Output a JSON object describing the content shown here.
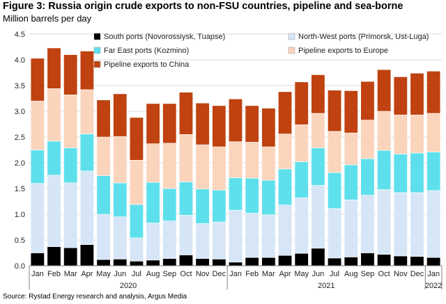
{
  "title": "Figure 3: Russia origin crude exports to non-FSU countries, pipeline and sea-borne",
  "subtitle": "Million barrels per day",
  "source": "Source: Rystad Energy research and analysis, Argus Media",
  "chart_data": {
    "type": "bar",
    "stacked": true,
    "ylim": [
      0,
      4.5
    ],
    "yticks": [
      "0.0",
      "0.5",
      "1.0",
      "1.5",
      "2.0",
      "2.5",
      "3.0",
      "3.5",
      "4.0",
      "4.5"
    ],
    "categories": [
      "Jan",
      "Feb",
      "Mar",
      "Apr",
      "May",
      "Jun",
      "Jul",
      "Aug",
      "Sep",
      "Oct",
      "Nov",
      "Dec",
      "Jan",
      "Feb",
      "Mar",
      "Apr",
      "May",
      "Jun",
      "Jul",
      "Aug",
      "Sep",
      "Oct",
      "Nov",
      "Dec",
      "Jan"
    ],
    "year_labels": [
      {
        "label": "2020",
        "start": 0,
        "end": 11
      },
      {
        "label": "2021",
        "start": 12,
        "end": 23
      },
      {
        "label": "2022",
        "start": 24,
        "end": 24
      }
    ],
    "grid": true,
    "legend_position": "top",
    "series": [
      {
        "name": "South ports (Novorossiysk, Tuapse)",
        "color": "#000000",
        "values": [
          0.25,
          0.37,
          0.35,
          0.41,
          0.12,
          0.13,
          0.09,
          0.11,
          0.14,
          0.21,
          0.14,
          0.13,
          0.07,
          0.16,
          0.16,
          0.2,
          0.24,
          0.34,
          0.15,
          0.17,
          0.25,
          0.22,
          0.19,
          0.18,
          0.16
        ]
      },
      {
        "name": "North-West ports (Primorsk, Ust-Luga)",
        "color": "#d6e6f7",
        "values": [
          1.35,
          1.39,
          1.26,
          1.43,
          0.88,
          0.82,
          0.45,
          0.72,
          0.73,
          0.77,
          0.68,
          0.72,
          1.01,
          0.86,
          0.83,
          0.98,
          1.08,
          1.22,
          0.96,
          1.11,
          1.12,
          1.26,
          1.23,
          1.24,
          1.3
        ]
      },
      {
        "name": "Far East ports (Kozmino)",
        "color": "#5ee0ec",
        "values": [
          0.65,
          0.66,
          0.68,
          0.72,
          0.75,
          0.66,
          0.65,
          0.79,
          0.63,
          0.65,
          0.67,
          0.62,
          0.63,
          0.68,
          0.67,
          0.7,
          0.7,
          0.73,
          0.7,
          0.68,
          0.71,
          0.76,
          0.75,
          0.77,
          0.75
        ]
      },
      {
        "name": "Pipeline exports to Europe",
        "color": "#fbd4bc",
        "values": [
          0.95,
          1.02,
          1.03,
          0.86,
          0.75,
          0.9,
          0.86,
          0.75,
          0.88,
          0.92,
          0.86,
          0.84,
          0.7,
          0.7,
          0.65,
          0.68,
          0.72,
          0.67,
          0.8,
          0.62,
          0.75,
          0.76,
          0.76,
          0.74,
          0.75
        ]
      },
      {
        "name": "Pipeline exports to China",
        "color": "#bf4210",
        "values": [
          0.83,
          0.79,
          0.78,
          0.75,
          0.72,
          0.83,
          0.83,
          0.78,
          0.77,
          0.82,
          0.81,
          0.8,
          0.83,
          0.71,
          0.75,
          0.82,
          0.83,
          0.75,
          0.8,
          0.82,
          0.75,
          0.81,
          0.74,
          0.81,
          0.82
        ]
      }
    ]
  }
}
